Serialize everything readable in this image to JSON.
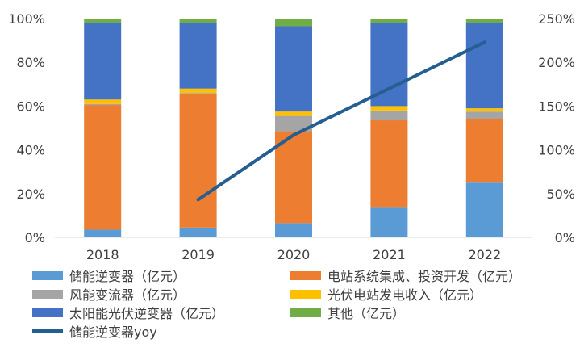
{
  "chart_data": {
    "type": "bar",
    "stacked": true,
    "categories": [
      "2018",
      "2019",
      "2020",
      "2021",
      "2022"
    ],
    "ylim": [
      0,
      100
    ],
    "y_ticks": [
      "0%",
      "20%",
      "40%",
      "60%",
      "80%",
      "100%"
    ],
    "y2lim": [
      0,
      250
    ],
    "y2_ticks": [
      "0%",
      "50%",
      "100%",
      "150%",
      "200%",
      "250%"
    ],
    "legend_position": "bottom",
    "series": [
      {
        "name": "储能逆变器（亿元）",
        "color": "#5B9BD5",
        "values": [
          3.5,
          4.5,
          6.5,
          13.5,
          25
        ]
      },
      {
        "name": "电站系统集成、投资开发（亿元）",
        "color": "#ED7D31",
        "values": [
          57,
          61,
          42,
          40,
          29
        ]
      },
      {
        "name": "风能变流器（亿元）",
        "color": "#A5A5A5",
        "values": [
          0.5,
          0.5,
          7,
          4.5,
          3.5
        ]
      },
      {
        "name": "光伏电站发电收入（亿元）",
        "color": "#FFC000",
        "values": [
          2,
          2,
          2,
          2,
          1.5
        ]
      },
      {
        "name": "太阳能光伏逆变器（亿元）",
        "color": "#4472C4",
        "values": [
          35,
          30,
          39,
          38,
          39
        ]
      },
      {
        "name": "其他（亿元）",
        "color": "#70AD47",
        "values": [
          2,
          2,
          3.5,
          2,
          2
        ]
      }
    ],
    "line_series": {
      "name": "储能逆变器yoy",
      "color": "#255E91",
      "axis": "right",
      "x": [
        "2019",
        "2020",
        "2021",
        "2022"
      ],
      "values": [
        43,
        117,
        170,
        223
      ]
    }
  }
}
